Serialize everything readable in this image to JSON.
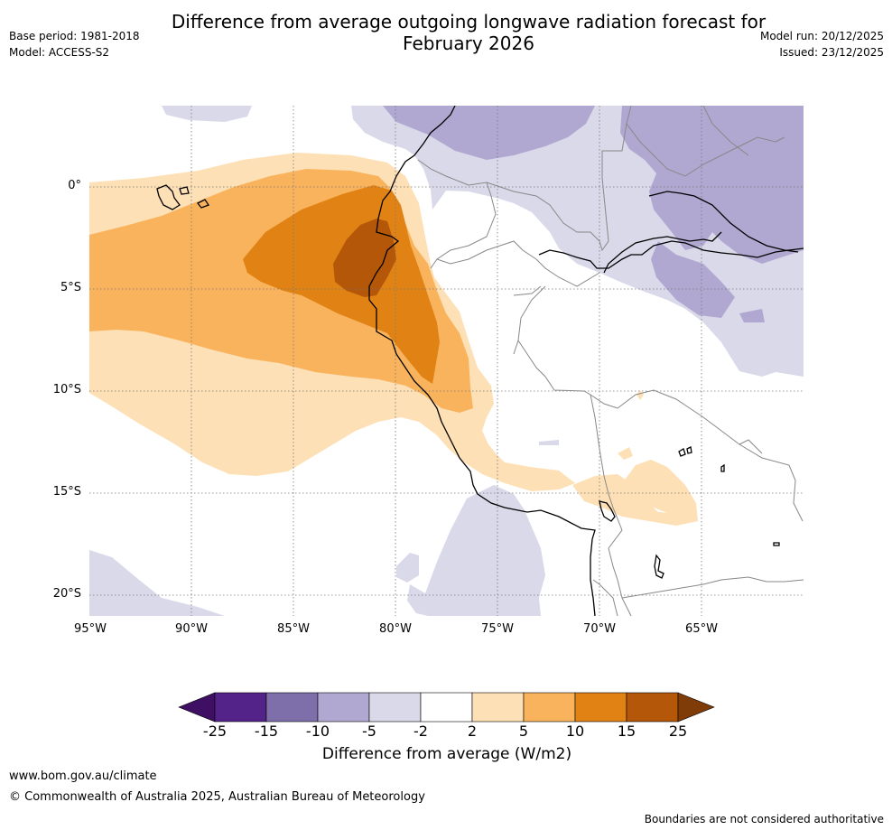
{
  "header": {
    "title_line1": "Difference from average outgoing longwave radiation forecast for",
    "title_line2": "February 2026",
    "base_period": "Base period: 1981-2018",
    "model": "Model: ACCESS-S2",
    "model_run": "Model run: 20/12/2025",
    "issued": "Issued: 23/12/2025"
  },
  "map": {
    "lon_labels": [
      "95°W",
      "90°W",
      "85°W",
      "80°W",
      "75°W",
      "70°W",
      "65°W"
    ],
    "lat_labels": [
      "0°",
      "5°S",
      "10°S",
      "15°S",
      "20°S"
    ],
    "lon_range": [
      -95,
      -60
    ],
    "lat_range": [
      4,
      -21
    ]
  },
  "colorbar": {
    "label": "Difference from average (W/m2)",
    "ticks": [
      "-25",
      "-15",
      "-10",
      "-5",
      "-2",
      "2",
      "5",
      "10",
      "15",
      "25"
    ],
    "colors": [
      "#3f0f63",
      "#54238a",
      "#7e6fab",
      "#b0a8d1",
      "#d9d9ea",
      "#ffffff",
      "#fde0b5",
      "#f9b35d",
      "#e08214",
      "#b45709",
      "#7f3b08"
    ]
  },
  "footer": {
    "website": "www.bom.gov.au/climate",
    "copyright": "© Commonwealth of Australia 2025, Australian Bureau of Meteorology",
    "disclaimer": "Boundaries are not considered authoritative"
  }
}
